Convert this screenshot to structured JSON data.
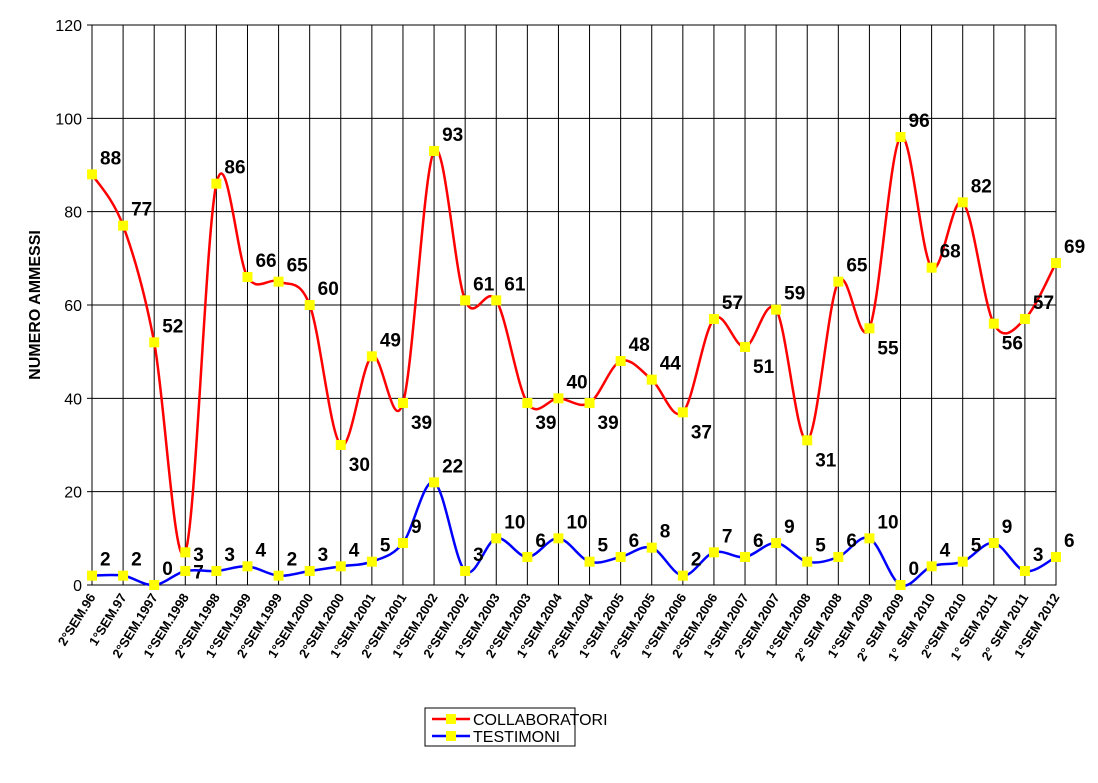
{
  "chart_data": {
    "type": "line",
    "y_label": "NUMERO AMMESSI",
    "categories": [
      "2°SEM.96",
      "1°SEM.97",
      "2°SEM.1997",
      "1°SEM.1998",
      "2°SEM.1998",
      "1°SEM.1999",
      "2°SEM.1999",
      "1°SEM.2000",
      "2°SEM.2000",
      "1°SEM.2001",
      "2°SEM.2001",
      "1°SEM.2002",
      "2°SEM.2002",
      "1°SEM.2003",
      "2°SEM.2003",
      "1°SEM.2004",
      "2°SEM.2004",
      "1°SEM.2005",
      "2°SEM.2005",
      "1°SEM.2006",
      "2°SEM.2006",
      "1°SEM.2007",
      "2°SEM.2007",
      "1°SEM.2008",
      "2° SEM 2008",
      "1°SEM 2009",
      "2° SEM 2009",
      "1° SEM 2010",
      "2°SEM 2010",
      "1° SEM 2011",
      "2° SEM 2011",
      "1°SEM 2012"
    ],
    "series": [
      {
        "name": "COLLABORATORI",
        "color": "#ff0000",
        "values": [
          88,
          77,
          52,
          7,
          86,
          66,
          65,
          60,
          30,
          49,
          39,
          93,
          61,
          61,
          39,
          40,
          39,
          48,
          44,
          37,
          57,
          51,
          59,
          31,
          65,
          55,
          96,
          68,
          82,
          56,
          57,
          69
        ]
      },
      {
        "name": "TESTIMONI",
        "color": "#0000ff",
        "values": [
          2,
          2,
          0,
          3,
          3,
          4,
          2,
          3,
          4,
          5,
          9,
          22,
          3,
          10,
          6,
          10,
          5,
          6,
          8,
          2,
          7,
          6,
          9,
          5,
          6,
          10,
          0,
          4,
          5,
          9,
          3,
          6
        ]
      }
    ],
    "marker_color": "#ffff00",
    "ylim": [
      0,
      120
    ],
    "yticks": [
      0,
      20,
      40,
      60,
      80,
      100,
      120
    ],
    "grid": true,
    "legend": "bottom"
  }
}
